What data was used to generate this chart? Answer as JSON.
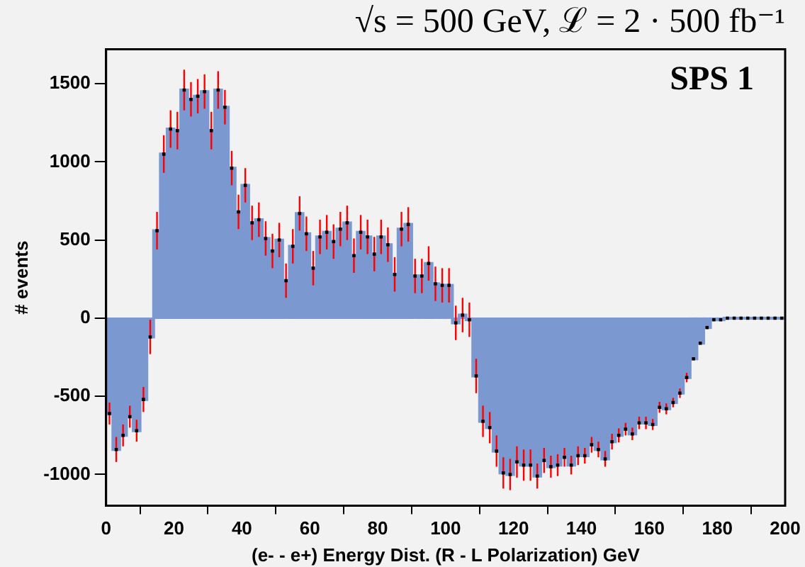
{
  "chart_data": {
    "type": "histogram",
    "title": "√s = 500 GeV, ℒ = 2 · 500 fb⁻¹",
    "xlabel": "(e- - e+) Energy Dist. (R - L Polarization) GeV",
    "ylabel": "# events",
    "annotations": [
      "SPS 1"
    ],
    "bins": [
      0,
      2,
      4,
      6,
      8,
      10,
      12,
      14,
      16,
      18,
      20,
      22,
      24,
      26,
      28,
      30,
      32,
      34,
      36,
      38,
      40,
      42,
      44,
      46,
      48,
      50,
      52,
      54,
      56,
      58,
      60,
      62,
      64,
      66,
      68,
      70,
      72,
      74,
      76,
      78,
      80,
      82,
      84,
      86,
      88,
      90,
      92,
      94,
      96,
      98,
      100,
      102,
      104,
      106,
      108,
      110,
      112,
      114,
      116,
      118,
      120,
      122,
      124,
      126,
      128,
      130,
      132,
      134,
      136,
      138,
      140,
      142,
      144,
      146,
      148,
      150,
      152,
      154,
      156,
      158,
      160,
      162,
      164,
      166,
      168,
      170,
      172,
      174,
      176,
      178,
      180,
      182,
      184,
      186,
      188,
      190,
      192,
      194,
      196,
      198,
      200
    ],
    "values": [
      -610,
      -840,
      -750,
      -630,
      -720,
      -520,
      -120,
      560,
      1050,
      1210,
      1200,
      1460,
      1400,
      1420,
      1450,
      1200,
      1460,
      1350,
      960,
      680,
      850,
      610,
      630,
      510,
      430,
      500,
      240,
      460,
      670,
      540,
      320,
      520,
      550,
      490,
      570,
      610,
      400,
      550,
      520,
      410,
      520,
      470,
      280,
      570,
      600,
      270,
      270,
      350,
      220,
      210,
      210,
      -30,
      20,
      -10,
      -370,
      -660,
      -700,
      -850,
      -990,
      -1000,
      -920,
      -940,
      -940,
      -1010,
      -910,
      -950,
      -940,
      -890,
      -940,
      -880,
      -880,
      -810,
      -840,
      -900,
      -790,
      -750,
      -710,
      -740,
      -670,
      -670,
      -680,
      -570,
      -580,
      -540,
      -480,
      -380,
      -260,
      -160,
      -60,
      -10,
      -10,
      0,
      0,
      0,
      0,
      0,
      0,
      0,
      0,
      0
    ],
    "color": "#7b98d0",
    "series": [
      {
        "type": "scatter",
        "color": "#000000",
        "x": [
          1,
          3,
          5,
          7,
          9,
          11,
          13,
          15,
          17,
          19,
          21,
          23,
          25,
          27,
          29,
          31,
          33,
          35,
          37,
          39,
          41,
          43,
          45,
          47,
          49,
          51,
          53,
          55,
          57,
          59,
          61,
          63,
          65,
          67,
          69,
          71,
          73,
          75,
          77,
          79,
          81,
          83,
          85,
          87,
          89,
          91,
          93,
          95,
          97,
          99,
          101,
          103,
          105,
          107,
          109,
          111,
          113,
          115,
          117,
          119,
          121,
          123,
          125,
          127,
          129,
          131,
          133,
          135,
          137,
          139,
          141,
          143,
          145,
          147,
          149,
          151,
          153,
          155,
          157,
          159,
          161,
          163,
          165,
          167,
          169,
          171,
          173,
          175,
          177,
          179,
          181,
          183,
          185,
          187,
          189,
          191,
          193,
          195,
          197,
          199
        ],
        "values": [
          -610,
          -840,
          -750,
          -630,
          -720,
          -520,
          -120,
          560,
          1050,
          1210,
          1200,
          1460,
          1400,
          1420,
          1450,
          1200,
          1460,
          1350,
          960,
          680,
          850,
          610,
          630,
          510,
          430,
          500,
          240,
          460,
          670,
          540,
          320,
          520,
          550,
          490,
          570,
          610,
          400,
          550,
          520,
          410,
          520,
          470,
          280,
          570,
          600,
          270,
          270,
          350,
          220,
          210,
          210,
          -30,
          20,
          -10,
          -370,
          -660,
          -700,
          -850,
          -990,
          -1000,
          -920,
          -940,
          -940,
          -1010,
          -910,
          -950,
          -940,
          -890,
          -940,
          -880,
          -880,
          -810,
          -840,
          -900,
          -790,
          -750,
          -710,
          -740,
          -670,
          -670,
          -680,
          -570,
          -580,
          -540,
          -480,
          -380,
          -260,
          -160,
          -60,
          -10,
          -10,
          0,
          0,
          0,
          0,
          0,
          0,
          0,
          0,
          0
        ],
        "errors": [
          70,
          80,
          70,
          70,
          70,
          80,
          110,
          120,
          120,
          120,
          120,
          130,
          110,
          110,
          110,
          120,
          120,
          110,
          110,
          110,
          110,
          110,
          110,
          110,
          110,
          110,
          110,
          110,
          110,
          110,
          110,
          110,
          110,
          110,
          110,
          110,
          110,
          110,
          110,
          110,
          110,
          110,
          110,
          110,
          110,
          110,
          110,
          110,
          110,
          110,
          110,
          110,
          110,
          110,
          110,
          100,
          100,
          100,
          100,
          100,
          100,
          100,
          100,
          80,
          80,
          70,
          70,
          60,
          60,
          60,
          50,
          50,
          50,
          50,
          50,
          45,
          40,
          40,
          40,
          40,
          35,
          35,
          35,
          30,
          30,
          30,
          null,
          null,
          null,
          null,
          null,
          null,
          null,
          null,
          null,
          null,
          null,
          null,
          null,
          null
        ]
      }
    ],
    "marker": "square",
    "grid": false,
    "legend": false,
    "xlim": [
      0,
      200
    ],
    "xticks": [
      0,
      20,
      40,
      60,
      80,
      100,
      120,
      140,
      160,
      180,
      200
    ],
    "ylim": [
      -1200,
      1720
    ],
    "yticks": [
      -1000,
      -500,
      0,
      500,
      1000,
      1500
    ]
  }
}
